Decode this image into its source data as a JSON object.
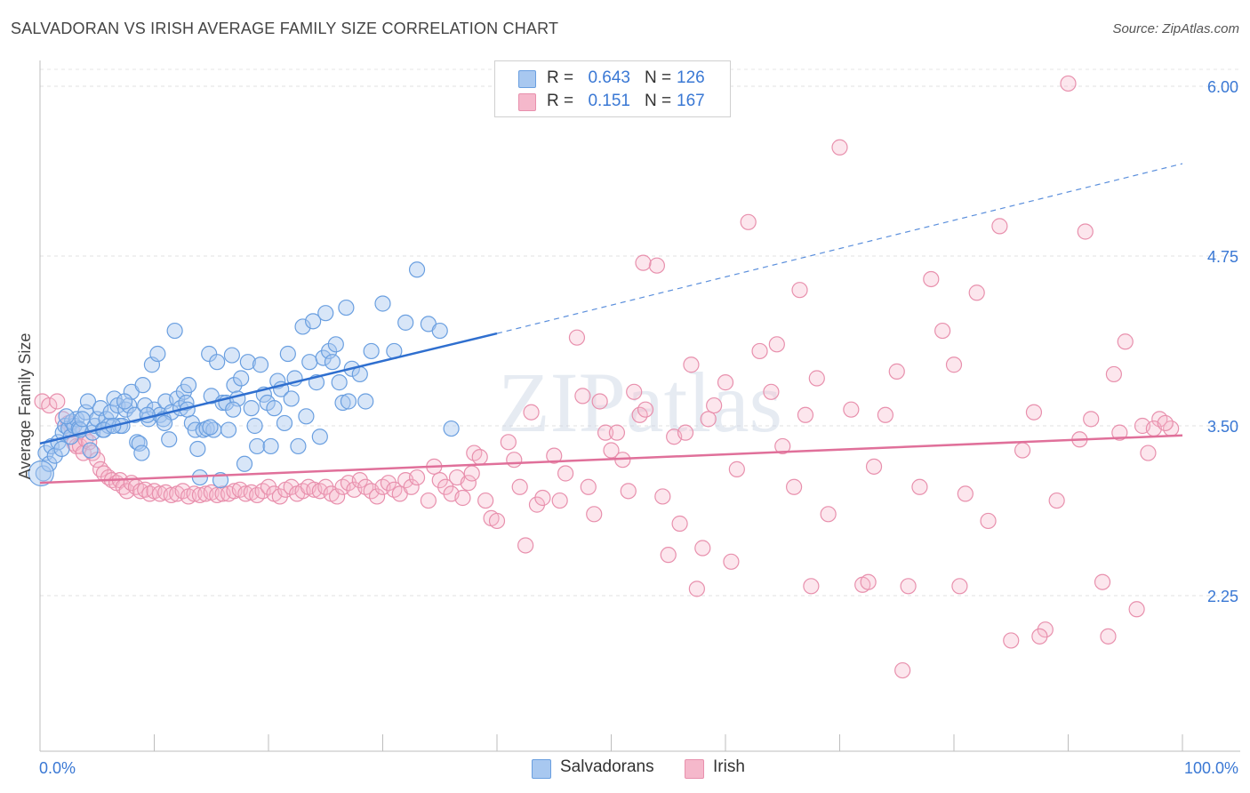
{
  "header": {
    "title": "SALVADORAN VS IRISH AVERAGE FAMILY SIZE CORRELATION CHART",
    "source": "Source: ZipAtlas.com"
  },
  "watermark": "ZIPatlas",
  "legend": {
    "rows": [
      {
        "r_label": "R =",
        "r_value": "0.643",
        "n_label": "N =",
        "n_value": "126",
        "color": "#a8c8f0"
      },
      {
        "r_label": "R =",
        "r_value": "0.151",
        "n_label": "N =",
        "n_value": "167",
        "color": "#f5b8cb"
      }
    ]
  },
  "bottom_legend": [
    {
      "label": "Salvadorans",
      "color": "#a8c8f0"
    },
    {
      "label": "Irish",
      "color": "#f5b8cb"
    }
  ],
  "chart_data": {
    "type": "scatter",
    "title": "SALVADORAN VS IRISH AVERAGE FAMILY SIZE CORRELATION CHART",
    "xlabel": "",
    "ylabel": "Average Family Size",
    "xlim": [
      0,
      100
    ],
    "ylim": [
      1.0,
      6.15
    ],
    "x_tick_labels": [
      "0.0%",
      "100.0%"
    ],
    "y_ticks": [
      2.25,
      3.5,
      4.75,
      6.0
    ],
    "y_tick_labels": [
      "2.25",
      "3.50",
      "4.75",
      "6.00"
    ],
    "grid": true,
    "legend_placement": "top-center",
    "colors": {
      "salvadorans": "#3a78d4",
      "irish": "#e0709a"
    },
    "series": [
      {
        "name": "Salvadorans",
        "trendline": {
          "x": [
            0,
            40
          ],
          "y": [
            3.37,
            4.18
          ],
          "extended": {
            "x": [
              40,
              100
            ],
            "y": [
              4.18,
              5.43
            ]
          }
        },
        "points": [
          [
            0.3,
            3.15
          ],
          [
            0.5,
            3.3
          ],
          [
            0.8,
            3.22
          ],
          [
            1.0,
            3.35
          ],
          [
            1.3,
            3.28
          ],
          [
            1.6,
            3.38
          ],
          [
            1.9,
            3.33
          ],
          [
            2.0,
            3.45
          ],
          [
            2.2,
            3.5
          ],
          [
            2.5,
            3.48
          ],
          [
            2.7,
            3.42
          ],
          [
            2.8,
            3.53
          ],
          [
            3.0,
            3.5
          ],
          [
            3.2,
            3.55
          ],
          [
            3.4,
            3.48
          ],
          [
            3.5,
            3.47
          ],
          [
            4.0,
            3.6
          ],
          [
            4.2,
            3.68
          ],
          [
            4.4,
            3.32
          ],
          [
            4.6,
            3.45
          ],
          [
            4.8,
            3.5
          ],
          [
            5.0,
            3.55
          ],
          [
            5.3,
            3.63
          ],
          [
            5.5,
            3.47
          ],
          [
            5.8,
            3.55
          ],
          [
            6.0,
            3.5
          ],
          [
            6.2,
            3.6
          ],
          [
            6.5,
            3.7
          ],
          [
            6.8,
            3.65
          ],
          [
            7.0,
            3.5
          ],
          [
            7.2,
            3.5
          ],
          [
            7.5,
            3.62
          ],
          [
            7.8,
            3.65
          ],
          [
            8.0,
            3.75
          ],
          [
            8.3,
            3.58
          ],
          [
            8.5,
            3.38
          ],
          [
            8.7,
            3.37
          ],
          [
            8.9,
            3.3
          ],
          [
            9.0,
            3.8
          ],
          [
            9.2,
            3.65
          ],
          [
            9.5,
            3.55
          ],
          [
            9.8,
            3.95
          ],
          [
            10.0,
            3.62
          ],
          [
            10.3,
            4.03
          ],
          [
            10.5,
            3.58
          ],
          [
            10.8,
            3.55
          ],
          [
            11.0,
            3.68
          ],
          [
            11.3,
            3.4
          ],
          [
            11.5,
            3.6
          ],
          [
            11.8,
            4.2
          ],
          [
            12.0,
            3.7
          ],
          [
            12.3,
            3.63
          ],
          [
            12.6,
            3.75
          ],
          [
            12.8,
            3.67
          ],
          [
            13.0,
            3.8
          ],
          [
            13.3,
            3.52
          ],
          [
            13.6,
            3.47
          ],
          [
            13.8,
            3.33
          ],
          [
            14.0,
            3.12
          ],
          [
            14.3,
            3.47
          ],
          [
            14.6,
            3.48
          ],
          [
            14.8,
            4.03
          ],
          [
            15.0,
            3.72
          ],
          [
            15.2,
            3.47
          ],
          [
            15.5,
            3.97
          ],
          [
            15.8,
            3.1
          ],
          [
            16.0,
            3.67
          ],
          [
            16.3,
            3.67
          ],
          [
            16.5,
            3.47
          ],
          [
            16.8,
            4.02
          ],
          [
            17.0,
            3.8
          ],
          [
            17.3,
            3.7
          ],
          [
            17.6,
            3.85
          ],
          [
            17.9,
            3.22
          ],
          [
            18.2,
            3.97
          ],
          [
            18.5,
            3.63
          ],
          [
            18.8,
            3.5
          ],
          [
            19.0,
            3.35
          ],
          [
            19.3,
            3.95
          ],
          [
            19.6,
            3.73
          ],
          [
            19.9,
            3.67
          ],
          [
            20.2,
            3.35
          ],
          [
            20.5,
            3.63
          ],
          [
            20.8,
            3.83
          ],
          [
            21.1,
            3.77
          ],
          [
            21.4,
            3.52
          ],
          [
            21.7,
            4.03
          ],
          [
            22.0,
            3.7
          ],
          [
            22.3,
            3.85
          ],
          [
            22.6,
            3.35
          ],
          [
            23.0,
            4.23
          ],
          [
            23.3,
            3.57
          ],
          [
            23.6,
            3.97
          ],
          [
            23.9,
            4.27
          ],
          [
            24.2,
            3.82
          ],
          [
            24.5,
            3.42
          ],
          [
            24.8,
            4.0
          ],
          [
            25.0,
            4.33
          ],
          [
            25.3,
            4.05
          ],
          [
            25.6,
            3.97
          ],
          [
            25.9,
            4.1
          ],
          [
            26.2,
            3.82
          ],
          [
            26.5,
            3.67
          ],
          [
            26.8,
            4.37
          ],
          [
            27.0,
            3.68
          ],
          [
            27.3,
            3.92
          ],
          [
            28.0,
            3.88
          ],
          [
            28.5,
            3.68
          ],
          [
            29.0,
            4.05
          ],
          [
            30.0,
            4.4
          ],
          [
            31.0,
            4.05
          ],
          [
            32.0,
            4.26
          ],
          [
            33.0,
            4.65
          ],
          [
            34.0,
            4.25
          ],
          [
            35.0,
            4.2
          ],
          [
            36.0,
            3.48
          ],
          [
            2.3,
            3.57
          ],
          [
            3.7,
            3.55
          ],
          [
            5.6,
            3.47
          ],
          [
            6.4,
            3.5
          ],
          [
            7.4,
            3.68
          ],
          [
            9.4,
            3.58
          ],
          [
            10.9,
            3.52
          ],
          [
            12.9,
            3.62
          ],
          [
            14.9,
            3.49
          ],
          [
            16.9,
            3.62
          ]
        ]
      },
      {
        "name": "Irish",
        "trendline": {
          "x": [
            0,
            100
          ],
          "y": [
            3.08,
            3.43
          ]
        },
        "points": [
          [
            0.2,
            3.68
          ],
          [
            0.8,
            3.65
          ],
          [
            1.5,
            3.68
          ],
          [
            2.0,
            3.55
          ],
          [
            2.5,
            3.52
          ],
          [
            2.8,
            3.47
          ],
          [
            3.0,
            3.37
          ],
          [
            3.2,
            3.35
          ],
          [
            3.5,
            3.35
          ],
          [
            3.8,
            3.3
          ],
          [
            4.0,
            3.4
          ],
          [
            4.3,
            3.38
          ],
          [
            4.6,
            3.3
          ],
          [
            5.0,
            3.25
          ],
          [
            5.3,
            3.18
          ],
          [
            5.6,
            3.15
          ],
          [
            6.0,
            3.12
          ],
          [
            6.3,
            3.1
          ],
          [
            6.7,
            3.08
          ],
          [
            7.0,
            3.1
          ],
          [
            7.3,
            3.05
          ],
          [
            7.6,
            3.02
          ],
          [
            8.0,
            3.08
          ],
          [
            8.4,
            3.05
          ],
          [
            8.8,
            3.02
          ],
          [
            9.2,
            3.03
          ],
          [
            9.6,
            3.0
          ],
          [
            10.0,
            3.02
          ],
          [
            10.5,
            3.0
          ],
          [
            11.0,
            3.01
          ],
          [
            11.5,
            2.99
          ],
          [
            12.0,
            3.0
          ],
          [
            12.5,
            3.02
          ],
          [
            13.0,
            2.98
          ],
          [
            13.5,
            3.0
          ],
          [
            14.0,
            2.99
          ],
          [
            14.5,
            3.0
          ],
          [
            15.0,
            3.01
          ],
          [
            15.5,
            2.99
          ],
          [
            16.0,
            3.0
          ],
          [
            16.5,
            3.0
          ],
          [
            17.0,
            3.02
          ],
          [
            17.5,
            3.03
          ],
          [
            18.0,
            3.0
          ],
          [
            18.5,
            3.01
          ],
          [
            19.0,
            2.99
          ],
          [
            19.5,
            3.02
          ],
          [
            20.0,
            3.05
          ],
          [
            20.5,
            3.0
          ],
          [
            21.0,
            2.98
          ],
          [
            21.5,
            3.03
          ],
          [
            22.0,
            3.05
          ],
          [
            22.5,
            3.0
          ],
          [
            23.0,
            3.02
          ],
          [
            23.5,
            3.05
          ],
          [
            24.0,
            3.03
          ],
          [
            24.5,
            3.02
          ],
          [
            25.0,
            3.05
          ],
          [
            25.5,
            3.0
          ],
          [
            26.0,
            2.98
          ],
          [
            26.5,
            3.05
          ],
          [
            27.0,
            3.08
          ],
          [
            27.5,
            3.03
          ],
          [
            28.0,
            3.1
          ],
          [
            28.5,
            3.05
          ],
          [
            29.0,
            3.02
          ],
          [
            29.5,
            2.98
          ],
          [
            30.0,
            3.05
          ],
          [
            30.5,
            3.08
          ],
          [
            31.0,
            3.03
          ],
          [
            31.5,
            3.0
          ],
          [
            32.0,
            3.1
          ],
          [
            32.5,
            3.05
          ],
          [
            33.0,
            3.12
          ],
          [
            34.0,
            2.95
          ],
          [
            34.5,
            3.2
          ],
          [
            35.0,
            3.1
          ],
          [
            35.5,
            3.05
          ],
          [
            36.0,
            3.0
          ],
          [
            36.5,
            3.12
          ],
          [
            37.0,
            2.97
          ],
          [
            37.5,
            3.08
          ],
          [
            38.0,
            3.3
          ],
          [
            38.5,
            3.27
          ],
          [
            39.0,
            2.95
          ],
          [
            39.5,
            2.82
          ],
          [
            40.0,
            2.8
          ],
          [
            41.0,
            3.38
          ],
          [
            41.5,
            3.25
          ],
          [
            42.0,
            3.05
          ],
          [
            42.5,
            2.62
          ],
          [
            43.0,
            3.6
          ],
          [
            43.5,
            2.92
          ],
          [
            44.0,
            2.97
          ],
          [
            45.0,
            3.28
          ],
          [
            45.5,
            2.95
          ],
          [
            46.0,
            3.15
          ],
          [
            47.0,
            4.15
          ],
          [
            47.5,
            3.72
          ],
          [
            48.0,
            3.05
          ],
          [
            48.5,
            2.85
          ],
          [
            49.0,
            3.68
          ],
          [
            49.5,
            3.45
          ],
          [
            50.0,
            3.32
          ],
          [
            50.5,
            3.45
          ],
          [
            51.0,
            3.25
          ],
          [
            51.5,
            3.02
          ],
          [
            52.0,
            3.75
          ],
          [
            52.5,
            3.58
          ],
          [
            53.0,
            3.62
          ],
          [
            54.0,
            4.68
          ],
          [
            54.5,
            2.98
          ],
          [
            55.0,
            2.55
          ],
          [
            55.5,
            3.42
          ],
          [
            56.0,
            2.78
          ],
          [
            56.5,
            3.45
          ],
          [
            57.0,
            3.95
          ],
          [
            58.0,
            2.6
          ],
          [
            58.5,
            3.55
          ],
          [
            59.0,
            3.65
          ],
          [
            60.0,
            3.82
          ],
          [
            61.0,
            3.18
          ],
          [
            62.0,
            5.0
          ],
          [
            63.0,
            4.05
          ],
          [
            64.0,
            3.75
          ],
          [
            65.0,
            3.35
          ],
          [
            66.0,
            3.05
          ],
          [
            67.0,
            3.58
          ],
          [
            68.0,
            3.85
          ],
          [
            69.0,
            2.85
          ],
          [
            70.0,
            5.55
          ],
          [
            71.0,
            3.62
          ],
          [
            72.0,
            2.33
          ],
          [
            73.0,
            3.2
          ],
          [
            74.0,
            3.58
          ],
          [
            75.0,
            3.9
          ],
          [
            76.0,
            2.32
          ],
          [
            77.0,
            3.05
          ],
          [
            78.0,
            4.58
          ],
          [
            79.0,
            4.2
          ],
          [
            80.0,
            3.95
          ],
          [
            81.0,
            3.0
          ],
          [
            82.0,
            4.48
          ],
          [
            83.0,
            2.8
          ],
          [
            84.0,
            4.97
          ],
          [
            85.0,
            1.92
          ],
          [
            86.0,
            3.32
          ],
          [
            87.0,
            3.6
          ],
          [
            88.0,
            2.0
          ],
          [
            89.0,
            2.95
          ],
          [
            90.0,
            6.02
          ],
          [
            91.0,
            3.4
          ],
          [
            92.0,
            3.55
          ],
          [
            93.0,
            2.35
          ],
          [
            94.0,
            3.88
          ],
          [
            95.0,
            4.12
          ],
          [
            96.0,
            2.15
          ],
          [
            97.0,
            3.3
          ],
          [
            98.0,
            3.55
          ],
          [
            99.0,
            3.48
          ],
          [
            57.5,
            2.3
          ],
          [
            60.5,
            2.5
          ],
          [
            64.5,
            4.1
          ],
          [
            67.5,
            2.32
          ],
          [
            72.5,
            2.35
          ],
          [
            75.5,
            1.7
          ],
          [
            80.5,
            2.32
          ],
          [
            87.5,
            1.95
          ],
          [
            91.5,
            4.93
          ],
          [
            93.5,
            1.95
          ],
          [
            94.5,
            3.45
          ],
          [
            96.5,
            3.5
          ],
          [
            97.5,
            3.48
          ],
          [
            98.5,
            3.52
          ],
          [
            66.5,
            4.5
          ],
          [
            52.8,
            4.7
          ],
          [
            37.8,
            3.15
          ]
        ]
      }
    ]
  }
}
